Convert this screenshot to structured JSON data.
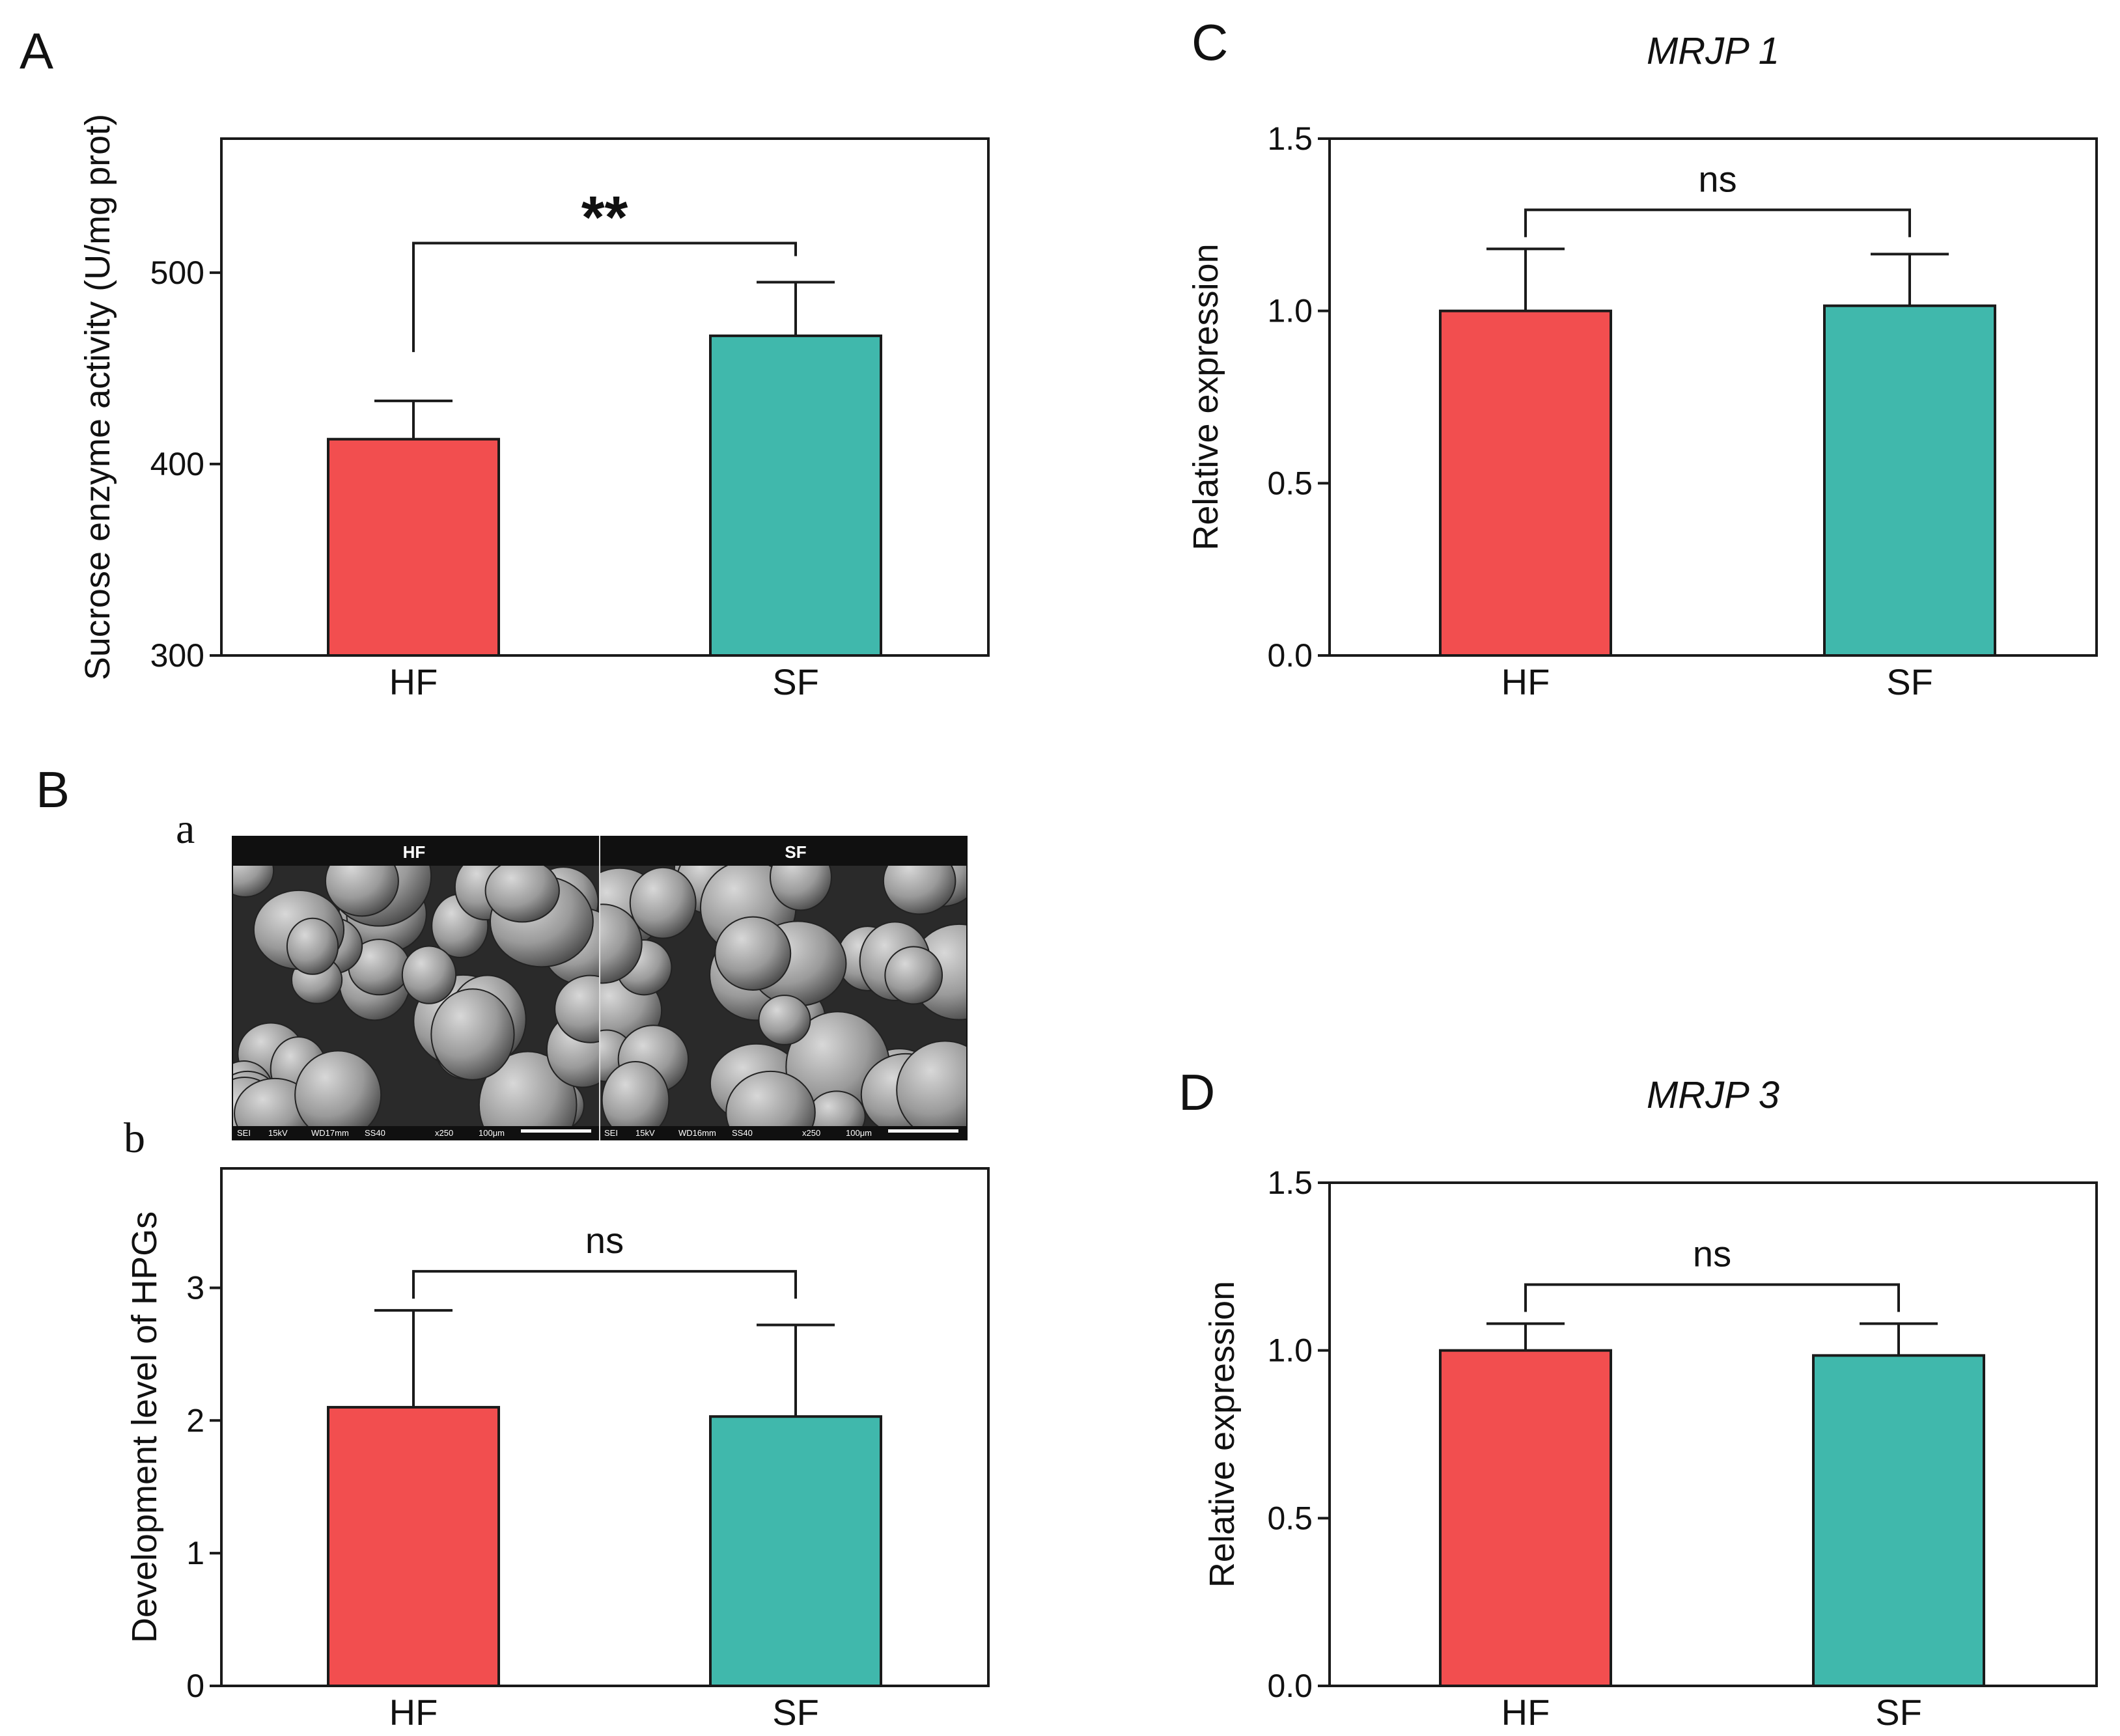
{
  "colors": {
    "hf": "#f24e4f",
    "sf": "#40b8ac",
    "axis": "#1a1a1a"
  },
  "panels": {
    "A": {
      "letter": "A"
    },
    "B": {
      "letter": "B",
      "sub_a": "a",
      "sub_b": "b"
    },
    "C": {
      "letter": "C"
    },
    "D": {
      "letter": "D"
    }
  },
  "sem_image": {
    "left_label": "HF",
    "right_label": "SF",
    "left_meta": [
      "SEI",
      "15kV",
      "WD17mm",
      "SS40",
      "x250",
      "100μm"
    ],
    "right_meta": [
      "SEI",
      "15kV",
      "WD16mm",
      "SS40",
      "x250",
      "100μm"
    ]
  },
  "chart_data": [
    {
      "id": "A",
      "type": "bar",
      "title": "",
      "categories": [
        "HF",
        "SF"
      ],
      "values": [
        413,
        467
      ],
      "errors": [
        20,
        28
      ],
      "ylabel": "Sucrose enzyme activity (U/mg prot)",
      "xlabel": "",
      "ylim": [
        300,
        570
      ],
      "yticks": [
        300,
        400,
        500
      ],
      "significance": "**"
    },
    {
      "id": "Bb",
      "type": "bar",
      "title": "",
      "categories": [
        "HF",
        "SF"
      ],
      "values": [
        2.1,
        2.03
      ],
      "errors": [
        0.73,
        0.69
      ],
      "ylabel": "Development level of HPGs",
      "xlabel": "",
      "ylim": [
        0,
        3.9
      ],
      "yticks": [
        0,
        1,
        2,
        3
      ],
      "significance": "ns"
    },
    {
      "id": "C",
      "type": "bar",
      "title": "MRJP 1",
      "categories": [
        "HF",
        "SF"
      ],
      "values": [
        1.0,
        1.015
      ],
      "errors": [
        0.18,
        0.15
      ],
      "ylabel": "Relative expression",
      "xlabel": "",
      "ylim": [
        0,
        1.5
      ],
      "yticks": [
        0.0,
        0.5,
        1.0,
        1.5
      ],
      "significance": "ns"
    },
    {
      "id": "D",
      "type": "bar",
      "title": "MRJP 3",
      "categories": [
        "HF",
        "SF"
      ],
      "values": [
        1.0,
        0.985
      ],
      "errors": [
        0.08,
        0.095
      ],
      "ylabel": "Relative expression",
      "xlabel": "",
      "ylim": [
        0,
        1.5
      ],
      "yticks": [
        0.0,
        0.5,
        1.0,
        1.5
      ],
      "significance": "ns"
    }
  ]
}
